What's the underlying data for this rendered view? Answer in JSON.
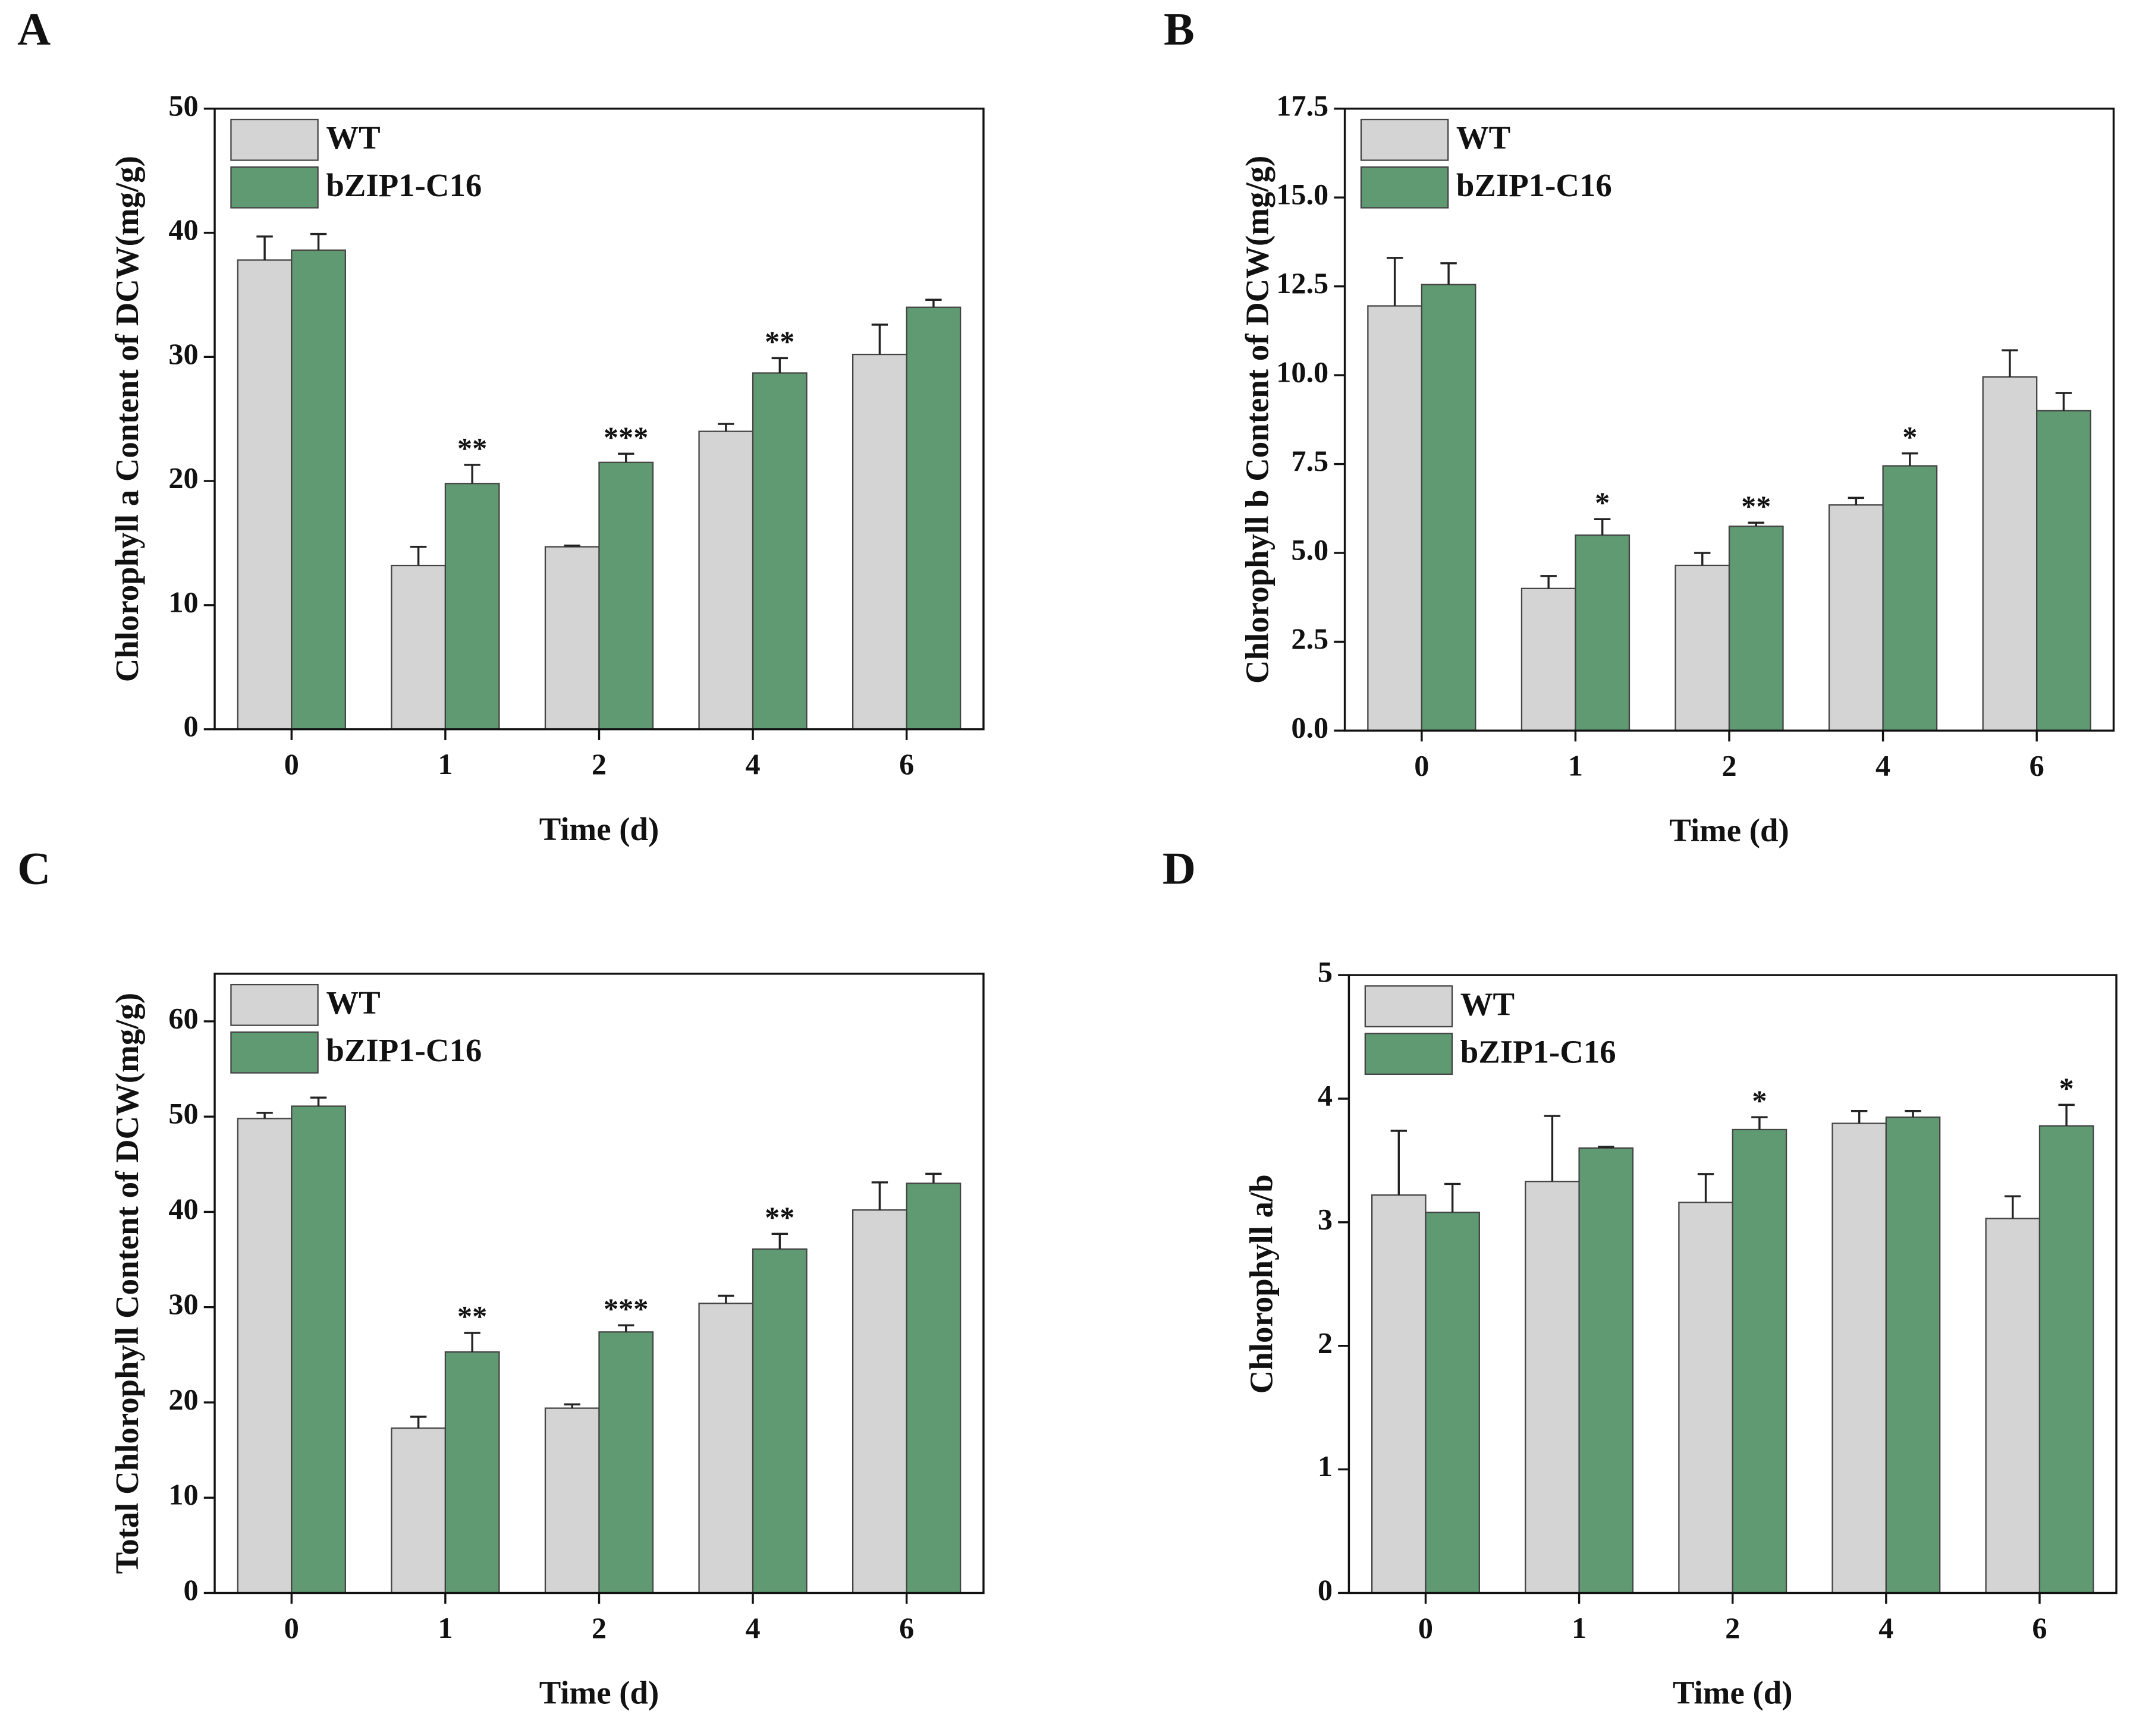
{
  "chart_data": [
    {
      "type": "bar",
      "label": "A",
      "xlabel": "Time (d)",
      "ylabel": "Chlorophyll a Content of DCW(mg/g)",
      "categories": [
        "0",
        "1",
        "2",
        "4",
        "6"
      ],
      "ylim": [
        0,
        50
      ],
      "yticks": [
        0,
        10,
        20,
        30,
        40,
        50
      ],
      "series": [
        {
          "name": "WT",
          "color": "#d4d4d4",
          "values": [
            37.8,
            13.2,
            14.7,
            24.0,
            30.2
          ],
          "errors": [
            1.9,
            1.5,
            0.1,
            0.6,
            2.4
          ]
        },
        {
          "name": "bZIP1-C16",
          "color": "#5f9a73",
          "values": [
            38.6,
            19.8,
            21.5,
            28.7,
            34.0
          ],
          "errors": [
            1.3,
            1.5,
            0.7,
            1.2,
            0.6
          ]
        }
      ],
      "annotations": [
        null,
        "**",
        "***",
        "**",
        null
      ]
    },
    {
      "type": "bar",
      "label": "B",
      "xlabel": "Time (d)",
      "ylabel": "Chlorophyll b Content of DCW(mg/g)",
      "categories": [
        "0",
        "1",
        "2",
        "4",
        "6"
      ],
      "ylim": [
        0,
        17.5
      ],
      "yticks": [
        {
          "value": 0,
          "label": "0.0"
        },
        2.5,
        {
          "value": 5,
          "label": "5.0"
        },
        7.5,
        {
          "value": 10,
          "label": "10.0"
        },
        12.5,
        {
          "value": 15,
          "label": "15.0"
        },
        17.5
      ],
      "series": [
        {
          "name": "WT",
          "color": "#d4d4d4",
          "values": [
            11.95,
            4.0,
            4.65,
            6.35,
            9.95
          ],
          "errors": [
            1.35,
            0.35,
            0.35,
            0.2,
            0.75
          ]
        },
        {
          "name": "bZIP1-C16",
          "color": "#5f9a73",
          "values": [
            12.55,
            5.5,
            5.75,
            7.45,
            9.0
          ],
          "errors": [
            0.6,
            0.45,
            0.1,
            0.35,
            0.5
          ]
        }
      ],
      "annotations": [
        null,
        "*",
        "**",
        "*",
        null
      ]
    },
    {
      "type": "bar",
      "label": "C",
      "xlabel": "Time (d)",
      "ylabel": "Total Chlorophyll Content of DCW(mg/g)",
      "categories": [
        "0",
        "1",
        "2",
        "4",
        "6"
      ],
      "ylim": [
        0,
        65
      ],
      "yticks": [
        0,
        10,
        20,
        30,
        40,
        50,
        60
      ],
      "series": [
        {
          "name": "WT",
          "color": "#d4d4d4",
          "values": [
            49.8,
            17.3,
            19.4,
            30.4,
            40.2
          ],
          "errors": [
            0.6,
            1.2,
            0.4,
            0.8,
            2.9
          ]
        },
        {
          "name": "bZIP1-C16",
          "color": "#5f9a73",
          "values": [
            51.1,
            25.3,
            27.4,
            36.1,
            43.0
          ],
          "errors": [
            0.9,
            2.0,
            0.7,
            1.6,
            1.0
          ]
        }
      ],
      "annotations": [
        null,
        "**",
        "***",
        "**",
        null
      ]
    },
    {
      "type": "bar",
      "label": "D",
      "xlabel": "Time (d)",
      "ylabel": "Chlorophyll a/b",
      "categories": [
        "0",
        "1",
        "2",
        "4",
        "6"
      ],
      "ylim": [
        0,
        5
      ],
      "yticks": [
        0,
        1,
        2,
        3,
        4,
        5
      ],
      "series": [
        {
          "name": "WT",
          "color": "#d4d4d4",
          "values": [
            3.22,
            3.33,
            3.16,
            3.8,
            3.03
          ],
          "errors": [
            0.52,
            0.53,
            0.23,
            0.1,
            0.18
          ]
        },
        {
          "name": "bZIP1-C16",
          "color": "#5f9a73",
          "values": [
            3.08,
            3.6,
            3.75,
            3.85,
            3.78
          ],
          "errors": [
            0.23,
            0.01,
            0.1,
            0.05,
            0.17
          ]
        }
      ],
      "annotations": [
        null,
        null,
        "*",
        null,
        "*"
      ]
    }
  ]
}
